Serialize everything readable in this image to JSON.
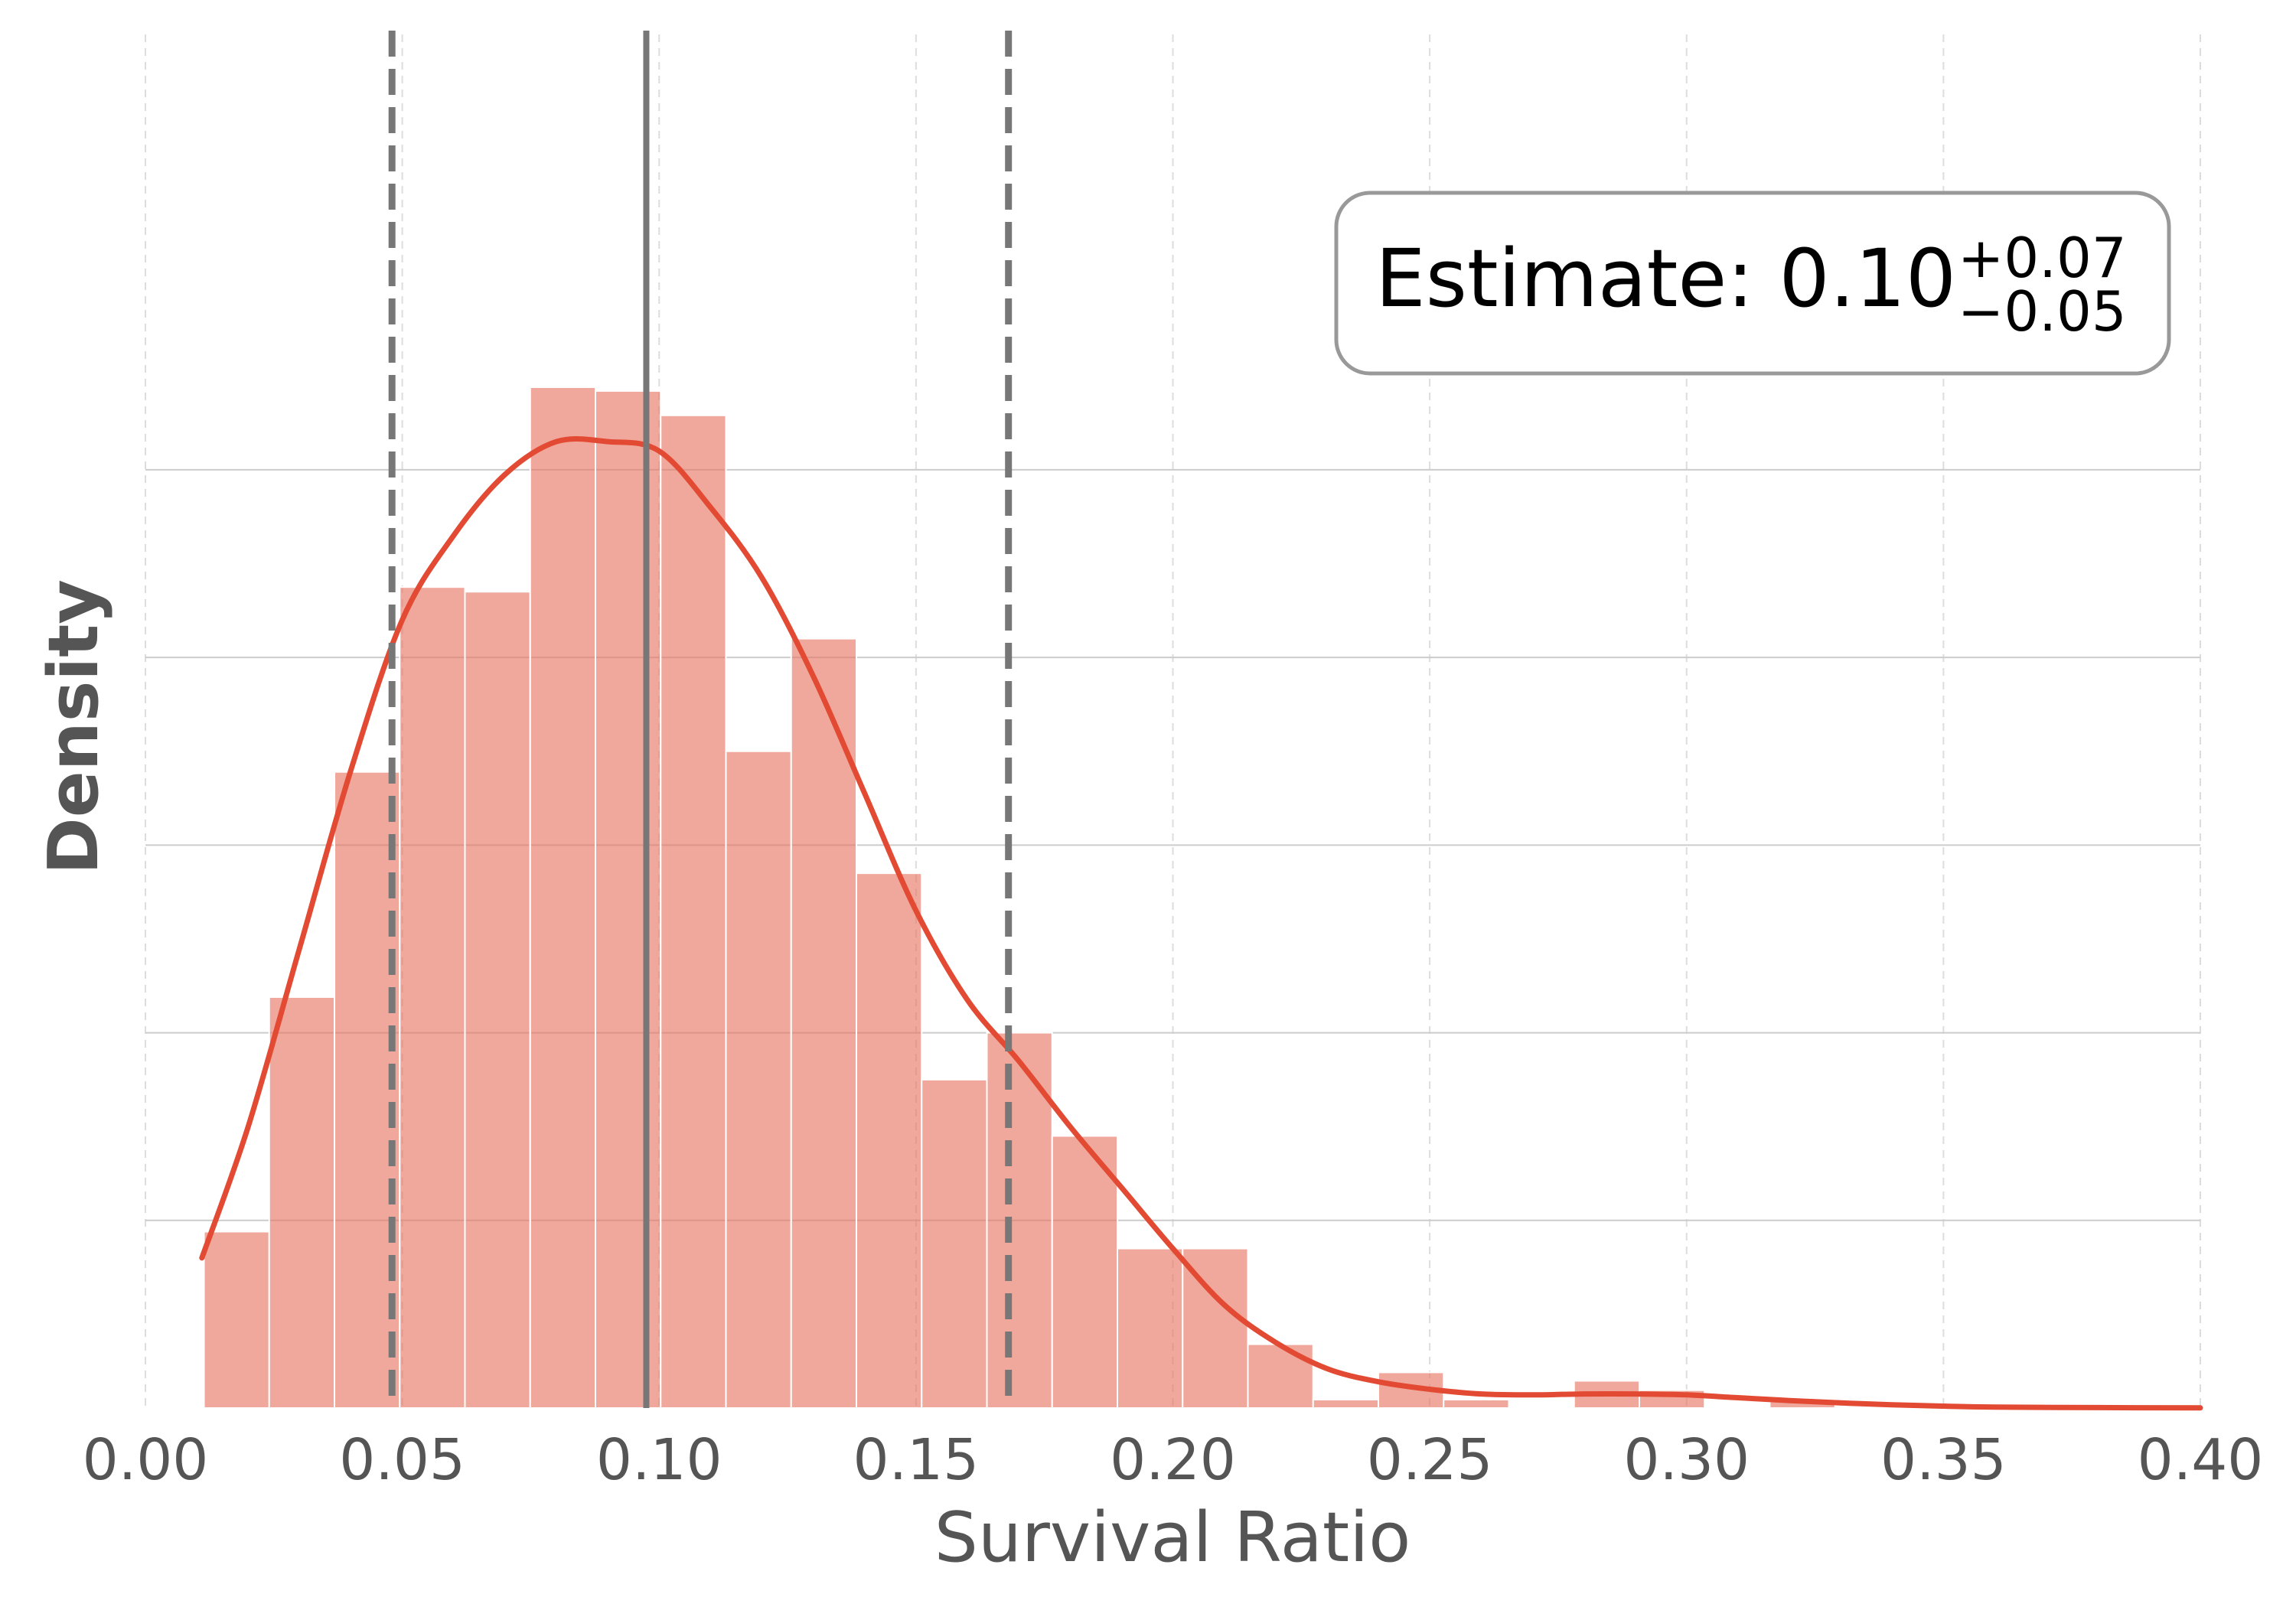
{
  "chart_data": {
    "type": "bar",
    "xlabel": "Survival Ratio",
    "ylabel": "Density",
    "xlim": [
      0.0,
      0.4
    ],
    "ylim": [
      0,
      14.64
    ],
    "x_ticks": [
      "0.00",
      "0.05",
      "0.10",
      "0.15",
      "0.20",
      "0.25",
      "0.30",
      "0.35",
      "0.40"
    ],
    "x_tick_values": [
      0.0,
      0.05,
      0.1,
      0.15,
      0.2,
      0.25,
      0.3,
      0.35,
      0.4
    ],
    "y_grid_values": [
      2,
      4,
      6,
      8,
      10
    ],
    "grid": true,
    "histogram": {
      "bin_edges": [
        0.0114,
        0.0241,
        0.0368,
        0.0495,
        0.0622,
        0.0749,
        0.0876,
        0.1003,
        0.113,
        0.1257,
        0.1384,
        0.1511,
        0.1638,
        0.1765,
        0.1892,
        0.2019,
        0.2146,
        0.2273,
        0.24,
        0.2527,
        0.2654,
        0.2781,
        0.2908,
        0.3035,
        0.3162,
        0.3289
      ],
      "values": [
        1.88,
        4.38,
        6.78,
        8.75,
        8.7,
        10.88,
        10.84,
        10.58,
        7.0,
        8.2,
        5.7,
        3.5,
        4.0,
        2.9,
        1.7,
        1.7,
        0.68,
        0.09,
        0.38,
        0.09,
        0.0,
        0.29,
        0.19,
        0.0,
        0.09
      ],
      "color": "#e8735f"
    },
    "series": [
      {
        "type": "kde",
        "x": [
          0.011,
          0.02,
          0.03,
          0.04,
          0.05,
          0.06,
          0.07,
          0.08,
          0.09,
          0.1,
          0.11,
          0.12,
          0.13,
          0.14,
          0.15,
          0.16,
          0.17,
          0.18,
          0.19,
          0.2,
          0.21,
          0.22,
          0.23,
          0.24,
          0.25,
          0.26,
          0.27,
          0.28,
          0.29,
          0.3,
          0.31,
          0.32,
          0.33,
          0.34,
          0.35,
          0.36,
          0.38,
          0.4
        ],
        "y": [
          1.6,
          3.0,
          4.9,
          6.8,
          8.4,
          9.3,
          9.95,
          10.3,
          10.3,
          10.2,
          9.6,
          8.85,
          7.8,
          6.55,
          5.3,
          4.35,
          3.7,
          3.0,
          2.35,
          1.7,
          1.1,
          0.7,
          0.42,
          0.28,
          0.2,
          0.15,
          0.14,
          0.15,
          0.15,
          0.14,
          0.11,
          0.08,
          0.055,
          0.035,
          0.02,
          0.01,
          0.005,
          0.002
        ],
        "color": "#e34a33"
      }
    ],
    "vlines": [
      {
        "x": 0.0975,
        "style": "solid",
        "color": "#777777"
      },
      {
        "x": 0.048,
        "style": "dashed",
        "color": "#777777"
      },
      {
        "x": 0.168,
        "style": "dashed",
        "color": "#777777"
      }
    ],
    "annotation": {
      "prefix": "Estimate: 0.10",
      "plus": "+0.07",
      "minus": "−0.05"
    }
  }
}
